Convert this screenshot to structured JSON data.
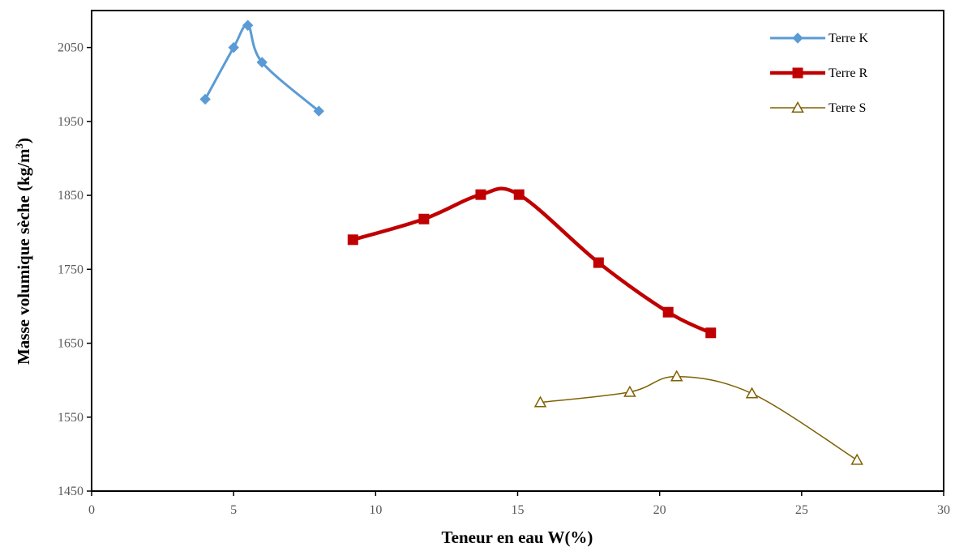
{
  "chart_data": {
    "type": "scatter",
    "xlabel": "Teneur en eau W(%)",
    "ylabel": "Masse volumique sèche (kg/m",
    "ylabel_sup": "3",
    "ylabel_end": ")",
    "xlim": [
      0,
      30
    ],
    "ylim": [
      1450,
      2100
    ],
    "x_ticks": [
      0,
      5,
      10,
      15,
      20,
      25,
      30
    ],
    "y_ticks": [
      1450,
      1550,
      1650,
      1750,
      1850,
      1950,
      2050
    ],
    "grid": false,
    "legend_position": "top-right",
    "series": [
      {
        "name": "Terre K",
        "marker": "diamond",
        "color": "#5B9BD5",
        "x": [
          4.0,
          5.0,
          5.5,
          6.0,
          8.0
        ],
        "y": [
          1980,
          2050,
          2080,
          2030,
          1964
        ]
      },
      {
        "name": "Terre R",
        "marker": "square",
        "color": "#C00000",
        "x": [
          9.2,
          11.7,
          13.7,
          15.05,
          17.85,
          20.3,
          21.8
        ],
        "y": [
          1790,
          1818,
          1851,
          1851,
          1759,
          1692,
          1664
        ]
      },
      {
        "name": "Terre S",
        "marker": "triangle",
        "color": "#7F6000",
        "x": [
          15.8,
          18.95,
          20.6,
          23.25,
          26.95
        ],
        "y": [
          1570,
          1584,
          1605,
          1582,
          1492
        ]
      }
    ]
  }
}
